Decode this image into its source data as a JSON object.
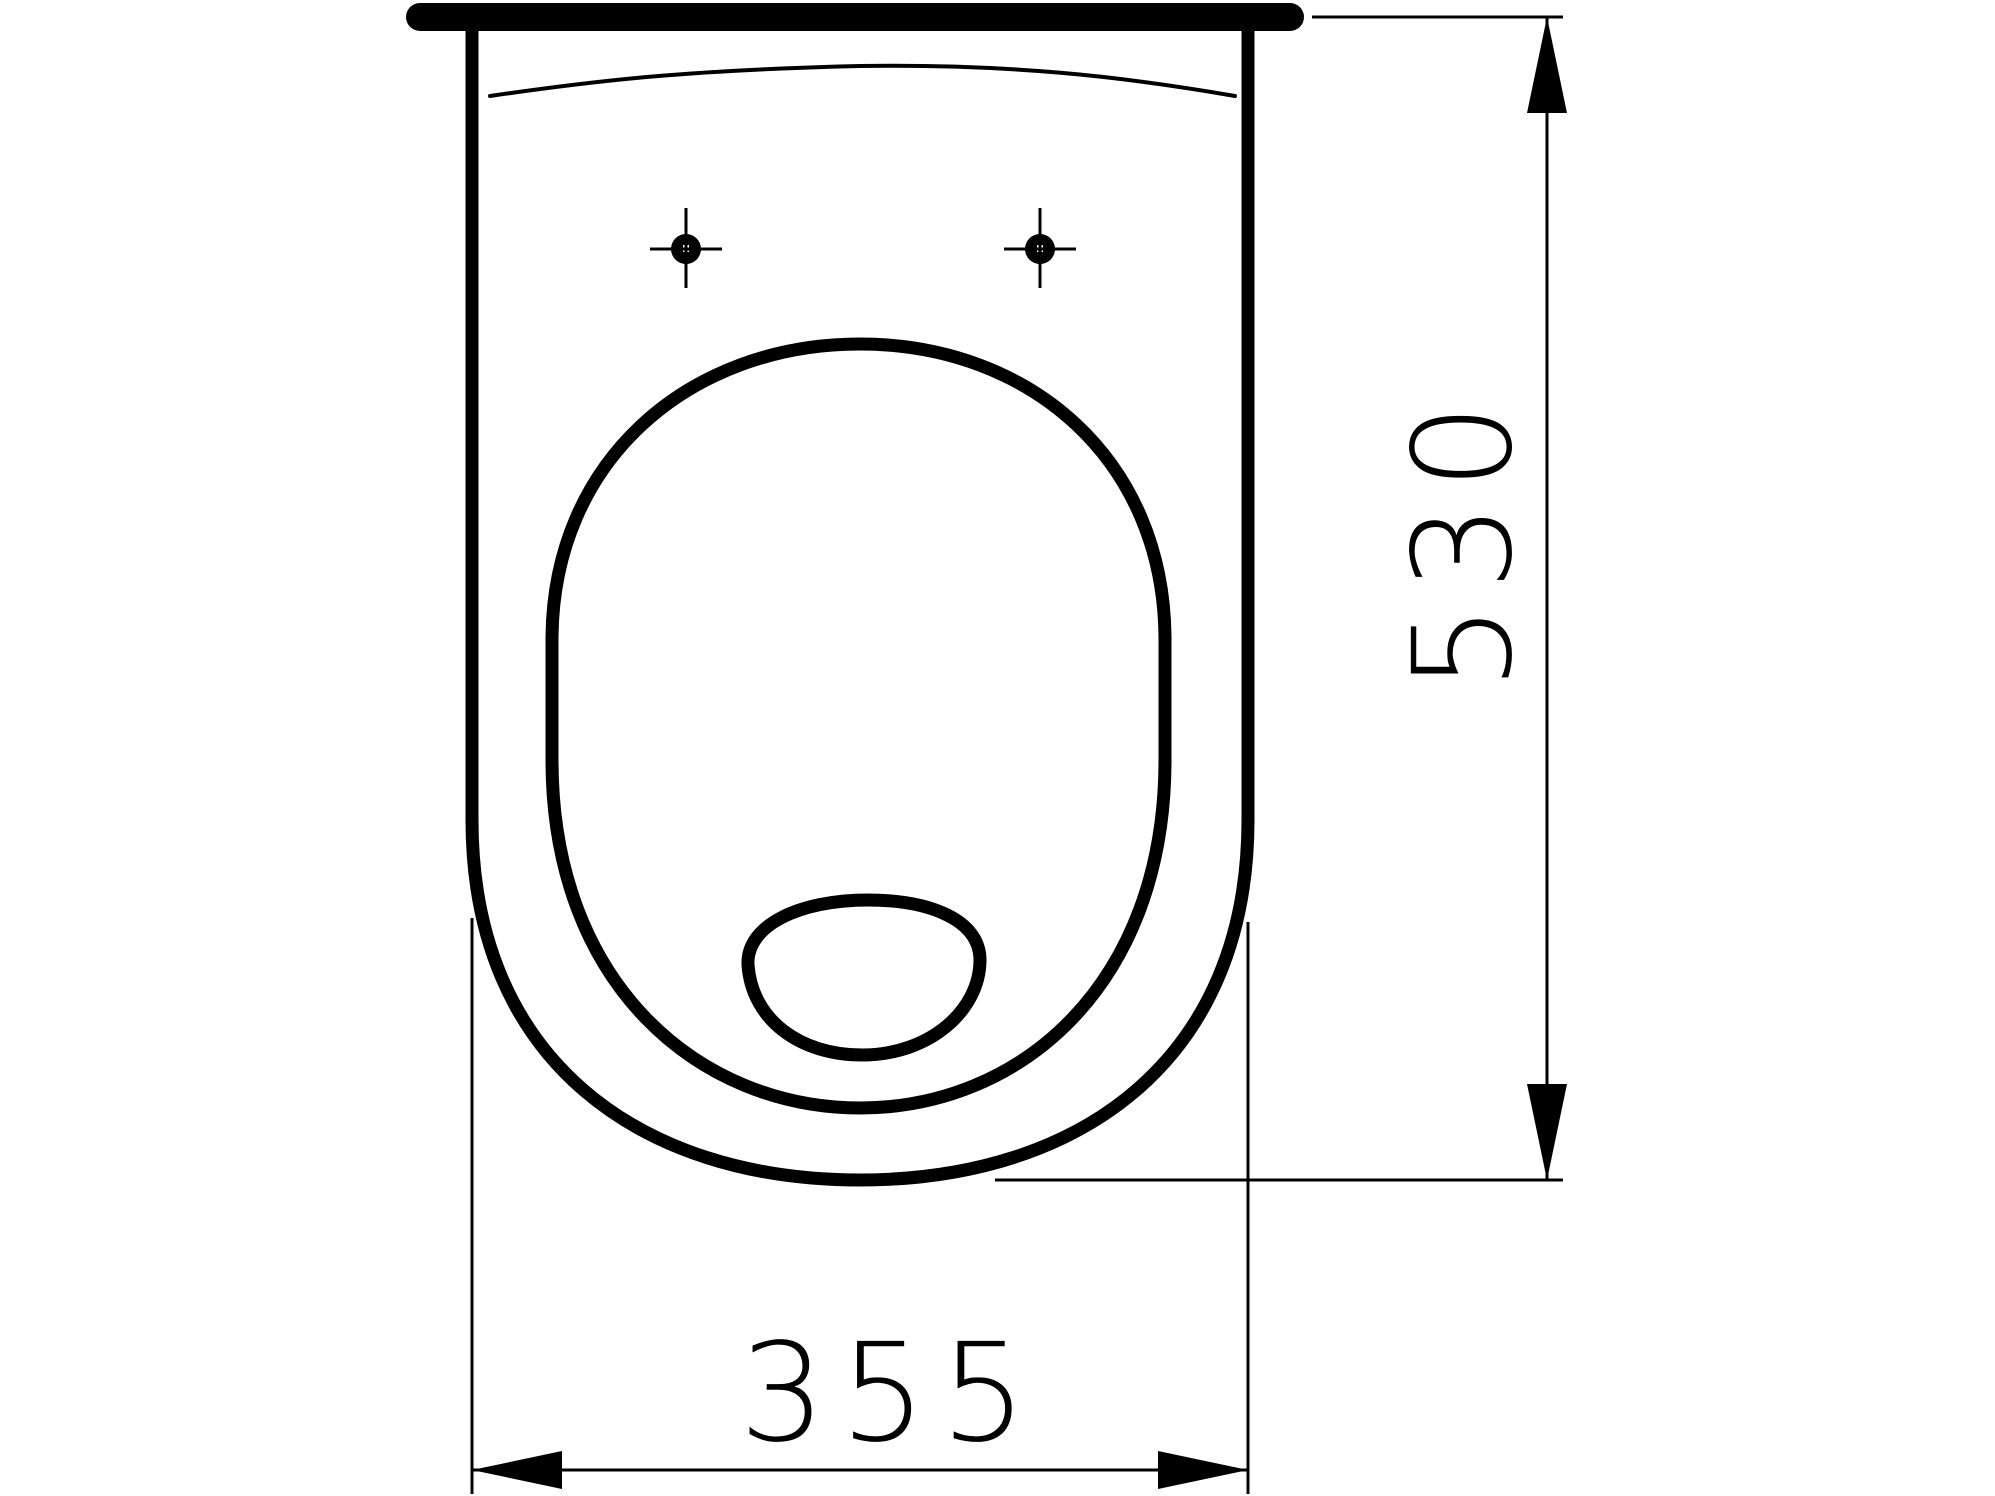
{
  "diagram": {
    "width_dimension": {
      "value": "355"
    },
    "length_dimension": {
      "value": "530"
    }
  }
}
